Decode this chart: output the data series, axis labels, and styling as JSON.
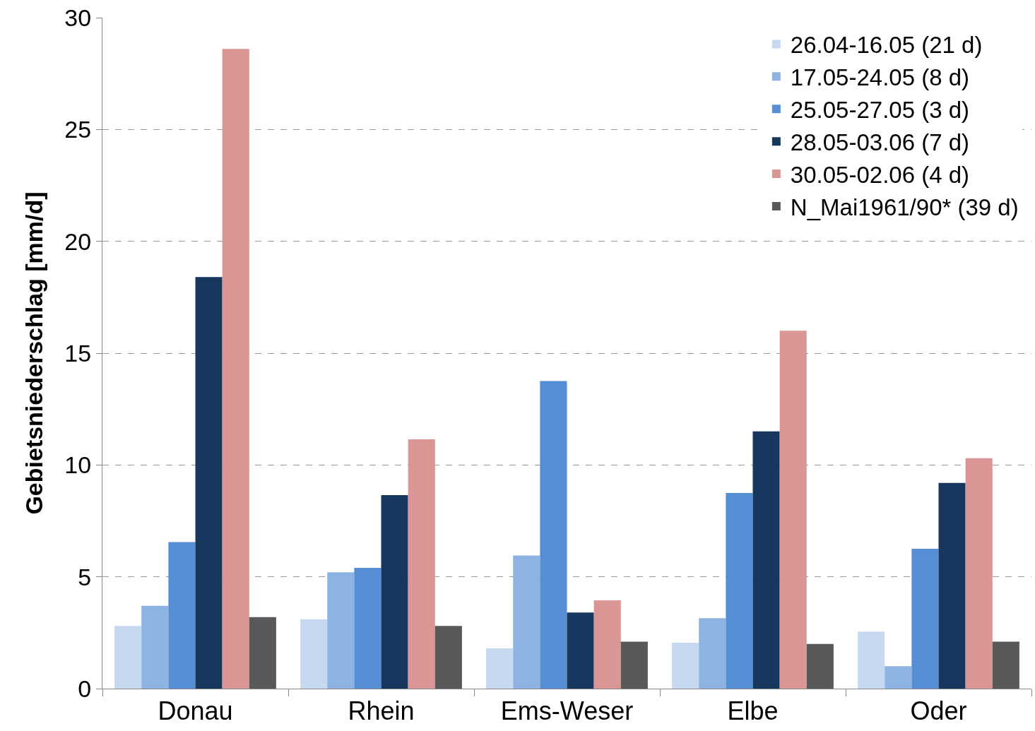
{
  "chart_data": {
    "type": "bar",
    "ylabel": "Gebietsniederschlag [mm/d]",
    "categories": [
      "Donau",
      "Rhein",
      "Ems-Weser",
      "Elbe",
      "Oder"
    ],
    "series": [
      {
        "name": "26.04-16.05 (21 d)",
        "color": "#c6d9f1",
        "values": [
          2.8,
          3.1,
          1.8,
          2.05,
          2.55
        ]
      },
      {
        "name": "17.05-24.05 (8 d)",
        "color": "#8db3e2",
        "values": [
          3.7,
          5.2,
          5.95,
          3.15,
          1.0
        ]
      },
      {
        "name": "25.05-27.05 (3 d)",
        "color": "#558ed5",
        "values": [
          6.55,
          5.4,
          13.75,
          8.75,
          6.25
        ]
      },
      {
        "name": "28.05-03.06 (7 d)",
        "color": "#17375e",
        "values": [
          18.4,
          8.65,
          3.4,
          11.5,
          9.2
        ]
      },
      {
        "name": "30.05-02.06 (4 d)",
        "color": "#d99694",
        "values": [
          28.6,
          11.15,
          3.95,
          16.0,
          10.3
        ]
      },
      {
        "name": "N_Mai1961/90* (39 d)",
        "color": "#595959",
        "values": [
          3.2,
          2.8,
          2.1,
          2.0,
          2.1
        ]
      }
    ],
    "ylim": [
      0,
      30
    ],
    "yticks": [
      0,
      5,
      10,
      15,
      20,
      25,
      30
    ],
    "grid": "y",
    "legend": "top right"
  }
}
